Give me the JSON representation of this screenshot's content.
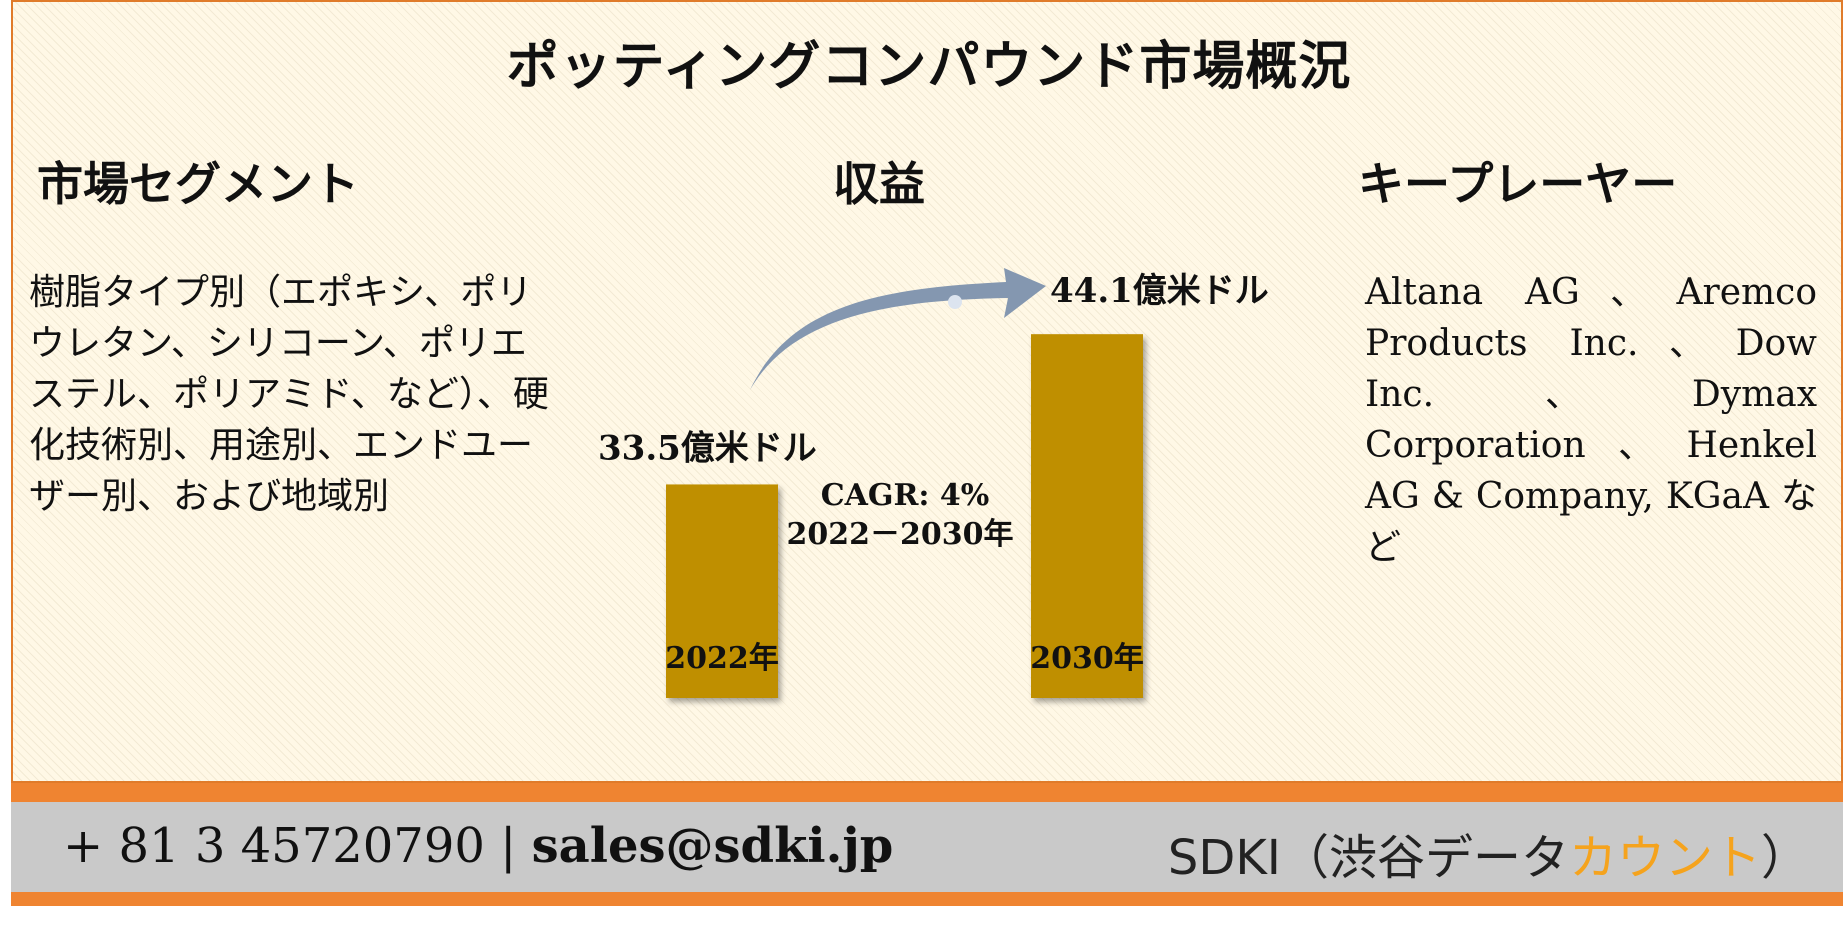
{
  "title": "ポッティングコンパウンド市場概況",
  "segment": {
    "heading": "市場セグメント",
    "text": "樹脂タイプ別（エポキシ、ポリウレタン、シリコーン、ポリエステル、ポリアミド、など）、硬化技術別、用途別、エンドユーザー別、および地域別"
  },
  "revenue": {
    "heading": "収益"
  },
  "key_players": {
    "heading": "キープレーヤー",
    "text": "Altana AG、Aremco Products Inc.、Dow Inc.、Dymax Corporation、Henkel AG & Company, KGaA など"
  },
  "chart_data": {
    "type": "bar",
    "categories": [
      "2022年",
      "2030年"
    ],
    "values": [
      33.5,
      44.1
    ],
    "value_labels": [
      "33.5億米ドル",
      "44.1億米ドル"
    ],
    "cagr_line1": "CAGR: 4%",
    "cagr_line2": "2022－2030年",
    "bar_color": "#bf8f00",
    "arrow_color": "#8497b0"
  },
  "footer": {
    "phone": "+ 81 3 45720790",
    "separator": " | ",
    "email": "sales@sdki.jp",
    "brand_prefix": "SDKI（渋谷データ",
    "brand_accent": "カウント",
    "brand_suffix": "）"
  }
}
